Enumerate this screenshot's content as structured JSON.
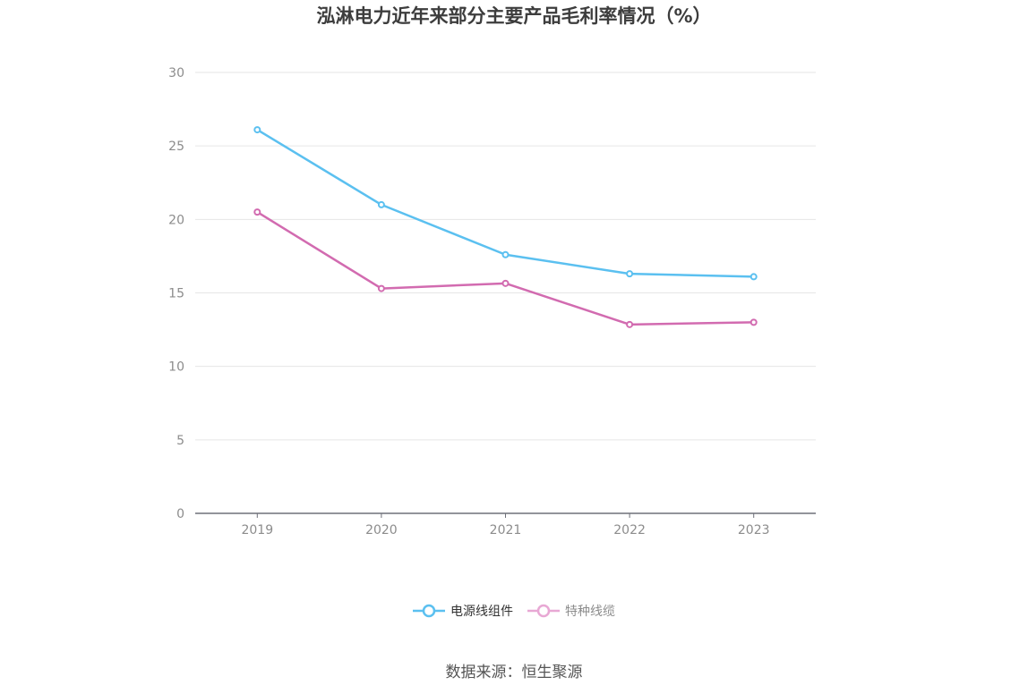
{
  "chart_data": {
    "type": "line",
    "title": "泓淋电力近年来部分主要产品毛利率情况（%）",
    "categories": [
      "2019",
      "2020",
      "2021",
      "2022",
      "2023"
    ],
    "series": [
      {
        "name": "电源线组件",
        "values": [
          26.1,
          21.0,
          17.6,
          16.3,
          16.1
        ],
        "color": "#5bc0f0"
      },
      {
        "name": "特种线缆",
        "values": [
          20.5,
          15.3,
          15.65,
          12.85,
          13.0
        ],
        "color": "#d26bb0"
      }
    ],
    "ylim": [
      0,
      30
    ],
    "yticks": [
      "0",
      "5",
      "10",
      "15",
      "20",
      "25",
      "30"
    ],
    "grid": true,
    "legend_position": "bottom"
  },
  "legend_colors": [
    "#5bc0f0",
    "#e8a8d4"
  ],
  "source": "数据来源：恒生聚源"
}
